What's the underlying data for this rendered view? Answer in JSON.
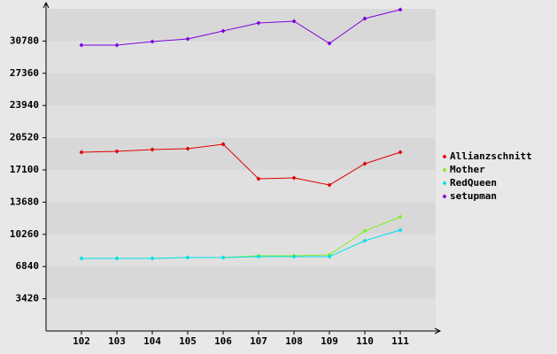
{
  "chart_data": {
    "type": "line",
    "categories": [
      "102",
      "103",
      "104",
      "105",
      "106",
      "107",
      "108",
      "109",
      "110",
      "111"
    ],
    "series": [
      {
        "name": "Allianzschnitt",
        "color": "#e00000",
        "values": [
          18979,
          19073,
          19261,
          19355,
          19825,
          16160,
          16254,
          15502,
          17758,
          18979
        ]
      },
      {
        "name": "Mother",
        "color": "#80f020",
        "values": [
          7704,
          7704,
          7704,
          7798,
          7798,
          7986,
          7986,
          8080,
          10617,
          12120
        ]
      },
      {
        "name": "RedQueen",
        "color": "#00e0f0",
        "values": [
          7704,
          7704,
          7704,
          7798,
          7798,
          7892,
          7892,
          7892,
          9583,
          10711
        ]
      },
      {
        "name": "setupman",
        "color": "#8000e0",
        "values": [
          30348,
          30348,
          30724,
          31006,
          31852,
          32697,
          32885,
          30536,
          33167,
          34120
        ]
      }
    ],
    "ylim": [
      0,
      34200
    ],
    "yticks": [
      3420,
      6840,
      10260,
      13680,
      17100,
      20520,
      23940,
      27360,
      30780
    ],
    "grid": true
  }
}
